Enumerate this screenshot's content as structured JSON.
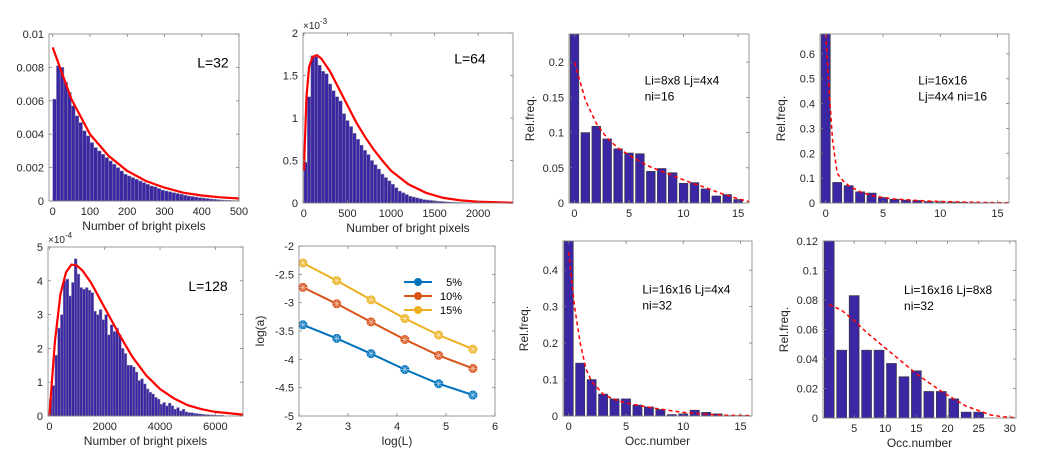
{
  "colors": {
    "bar_fill": "#3b27a3",
    "bar_edge": "#1a1050",
    "fit_line": "#ff0000",
    "series_5": "#0072bd",
    "series_10": "#d95319",
    "series_15": "#edb120",
    "axis": "#808080"
  },
  "chart_data": [
    {
      "id": "hist-L32",
      "type": "bar",
      "title": "",
      "annotation": "L=32",
      "xlabel": "Number of bright pixels",
      "ylabel": "",
      "xlim": [
        -10,
        500
      ],
      "ylim": [
        0,
        0.01
      ],
      "xticks": [
        0,
        100,
        200,
        300,
        400,
        500
      ],
      "xtick_labels": [
        "0",
        "100",
        "200",
        "300",
        "400",
        "500"
      ],
      "yticks": [
        0,
        0.002,
        0.004,
        0.006,
        0.008,
        0.01
      ],
      "ytick_labels": [
        "0",
        "0.002",
        "0.004",
        "0.006",
        "0.008",
        "0.01"
      ],
      "exponent_label": "",
      "bin_start": 0,
      "bin_width": 10,
      "values": [
        0.0061,
        0.0081,
        0.008,
        0.0071,
        0.0065,
        0.0057,
        0.0051,
        0.0047,
        0.0042,
        0.0039,
        0.0035,
        0.0032,
        0.003,
        0.0028,
        0.0026,
        0.0024,
        0.0022,
        0.002,
        0.0018,
        0.0016,
        0.0015,
        0.0014,
        0.0013,
        0.0012,
        0.0011,
        0.001,
        0.0009,
        0.00085,
        0.00075,
        0.00065,
        0.0006,
        0.00055,
        0.0005,
        0.00045,
        0.0004,
        0.00035,
        0.0003,
        0.00027,
        0.00024,
        0.0002,
        0.00018,
        0.00015,
        0.00012,
        0.0001,
        8e-05,
        6e-05,
        5e-05,
        4e-05,
        3e-05,
        2e-05
      ],
      "fit": {
        "kind": "exponential",
        "x": [
          0,
          50,
          100,
          150,
          200,
          250,
          300,
          350,
          400,
          450,
          500
        ],
        "y": [
          0.0092,
          0.0061,
          0.004,
          0.0027,
          0.0018,
          0.0012,
          0.0008,
          0.0005,
          0.00033,
          0.00022,
          0.00015
        ]
      }
    },
    {
      "id": "hist-L64",
      "type": "bar",
      "title": "",
      "annotation": "L=64",
      "xlabel": "Number of bright pixels",
      "ylabel": "",
      "xlim": [
        -10,
        2400
      ],
      "ylim": [
        0,
        2
      ],
      "xticks": [
        0,
        500,
        1000,
        1500,
        2000
      ],
      "xtick_labels": [
        "0",
        "500",
        "1000",
        "1500",
        "2000"
      ],
      "yticks": [
        0,
        0.5,
        1,
        1.5,
        2
      ],
      "ytick_labels": [
        "0",
        "0.5",
        "1",
        "1.5",
        "2"
      ],
      "exponent_label": "×10^-3",
      "bin_start": 0,
      "bin_width": 40,
      "values": [
        0.48,
        1.25,
        1.73,
        1.72,
        1.62,
        1.55,
        1.52,
        1.4,
        1.32,
        1.25,
        1.2,
        1.05,
        0.97,
        0.9,
        0.82,
        0.75,
        0.68,
        0.62,
        0.57,
        0.5,
        0.45,
        0.4,
        0.34,
        0.3,
        0.26,
        0.22,
        0.18,
        0.14,
        0.12,
        0.1,
        0.08,
        0.07,
        0.06,
        0.05,
        0.04,
        0.035,
        0.03,
        0.025,
        0.02,
        0.018,
        0.015,
        0.012,
        0.01,
        0.008,
        0.006,
        0.005,
        0.004,
        0.003
      ],
      "fit": {
        "kind": "gamma",
        "x": [
          0,
          30,
          60,
          100,
          150,
          200,
          300,
          400,
          500,
          600,
          700,
          800,
          900,
          1000,
          1200,
          1400,
          1600,
          1800,
          2000,
          2400
        ],
        "y": [
          0.38,
          1.25,
          1.6,
          1.72,
          1.74,
          1.7,
          1.55,
          1.35,
          1.15,
          0.95,
          0.78,
          0.63,
          0.5,
          0.38,
          0.22,
          0.12,
          0.06,
          0.03,
          0.015,
          0.003
        ]
      }
    },
    {
      "id": "occ-8x8-4x4-16",
      "type": "bar",
      "title": "",
      "annotation": [
        "Li=8x8 Lj=4x4",
        "ni=16"
      ],
      "xlabel": "",
      "ylabel": "Rel.freq.",
      "xlim": [
        -0.5,
        16
      ],
      "ylim": [
        0,
        0.24
      ],
      "xticks": [
        0,
        5,
        10,
        15
      ],
      "xtick_labels": [
        "0",
        "5",
        "10",
        "15"
      ],
      "yticks": [
        0,
        0.05,
        0.1,
        0.15,
        0.2
      ],
      "ytick_labels": [
        "0",
        "0.05",
        "0.1",
        "0.15",
        "0.2"
      ],
      "exponent_label": "",
      "categories": [
        0,
        1,
        2,
        3,
        4,
        5,
        6,
        7,
        8,
        9,
        10,
        11,
        12,
        13,
        14,
        15
      ],
      "values": [
        0.24,
        0.1,
        0.109,
        0.091,
        0.077,
        0.071,
        0.07,
        0.045,
        0.049,
        0.043,
        0.028,
        0.029,
        0.02,
        0.01,
        0.012,
        0.005
      ],
      "fit": {
        "kind": "dashed",
        "x": [
          0,
          1,
          2,
          3,
          4,
          5,
          6,
          7,
          8,
          9,
          10,
          11,
          12,
          13,
          14,
          15,
          16
        ],
        "y": [
          0.2,
          0.146,
          0.113,
          0.092,
          0.078,
          0.068,
          0.059,
          0.051,
          0.045,
          0.039,
          0.033,
          0.027,
          0.022,
          0.016,
          0.011,
          0.006,
          0.002
        ]
      }
    },
    {
      "id": "occ-16x16-4x4-16",
      "type": "bar",
      "title": "",
      "annotation": [
        "Li=16x16",
        "Lj=4x4 ni=16"
      ],
      "xlabel": "",
      "ylabel": "Rel.freq.",
      "xlim": [
        -0.5,
        16
      ],
      "ylim": [
        0,
        0.68
      ],
      "xticks": [
        0,
        5,
        10,
        15
      ],
      "xtick_labels": [
        "0",
        "5",
        "10",
        "15"
      ],
      "yticks": [
        0,
        0.1,
        0.2,
        0.3,
        0.4,
        0.5,
        0.6
      ],
      "ytick_labels": [
        "0",
        "0.1",
        "0.2",
        "0.3",
        "0.4",
        "0.5",
        "0.6"
      ],
      "exponent_label": "",
      "categories": [
        0,
        1,
        2,
        3,
        4,
        5,
        6,
        7,
        8,
        9,
        10,
        11,
        12,
        13,
        14,
        15
      ],
      "values": [
        0.68,
        0.083,
        0.07,
        0.045,
        0.04,
        0.022,
        0.015,
        0.012,
        0.01,
        0.006,
        0.005,
        0.004,
        0.003,
        0.002,
        0.001,
        0.001
      ],
      "fit": {
        "kind": "dashed",
        "x": [
          0,
          0.3,
          0.6,
          1,
          1.5,
          2,
          3,
          4,
          5,
          6,
          8,
          10,
          12,
          14,
          16
        ],
        "y": [
          0.68,
          0.45,
          0.25,
          0.12,
          0.09,
          0.07,
          0.045,
          0.03,
          0.022,
          0.016,
          0.01,
          0.006,
          0.004,
          0.002,
          0.001
        ]
      }
    },
    {
      "id": "hist-L128",
      "type": "bar",
      "title": "",
      "annotation": "L=128",
      "xlabel": "Number of bright pixels",
      "ylabel": "",
      "xlim": [
        -50,
        7000
      ],
      "ylim": [
        0,
        5
      ],
      "xticks": [
        0,
        2000,
        4000,
        6000
      ],
      "xtick_labels": [
        "0",
        "2000",
        "4000",
        "6000"
      ],
      "yticks": [
        0,
        1,
        2,
        3,
        4,
        5
      ],
      "ytick_labels": [
        "0",
        "1",
        "2",
        "3",
        "4",
        "5"
      ],
      "exponent_label": "×10^-4",
      "bin_start": 0,
      "bin_width": 100,
      "values": [
        0.5,
        0.9,
        1.8,
        2.6,
        3.0,
        4.0,
        4.05,
        3.55,
        3.95,
        4.65,
        4.2,
        3.8,
        3.75,
        3.8,
        3.72,
        3.65,
        3.1,
        3.0,
        3.15,
        2.85,
        3.0,
        2.4,
        2.7,
        2.5,
        2.6,
        2.4,
        2.0,
        1.85,
        1.5,
        1.5,
        1.45,
        1.3,
        1.05,
        1.1,
        0.95,
        0.8,
        0.7,
        0.65,
        0.55,
        0.5,
        0.35,
        0.4,
        0.3,
        0.38,
        0.3,
        0.2,
        0.25,
        0.15,
        0.2,
        0.12,
        0.1,
        0.1,
        0.08,
        0.07,
        0.06,
        0.05,
        0.04,
        0.04,
        0.03,
        0.03,
        0.02,
        0.02,
        0.02
      ],
      "fit": {
        "kind": "gamma",
        "x": [
          0,
          200,
          400,
          600,
          800,
          1000,
          1200,
          1500,
          2000,
          2500,
          3000,
          3500,
          4000,
          4500,
          5000,
          5500,
          6000,
          7000
        ],
        "y": [
          0,
          2.2,
          3.6,
          4.25,
          4.48,
          4.45,
          4.3,
          3.95,
          3.2,
          2.45,
          1.75,
          1.2,
          0.8,
          0.52,
          0.32,
          0.2,
          0.12,
          0.04
        ]
      }
    },
    {
      "id": "log-a-vs-log-L",
      "type": "line",
      "title": "",
      "xlabel": "log(L)",
      "ylabel": "log(a)",
      "xlim": [
        2,
        6
      ],
      "ylim": [
        -5,
        -2
      ],
      "xticks": [
        2,
        3,
        4,
        5,
        6
      ],
      "xtick_labels": [
        "2",
        "3",
        "4",
        "5",
        "6"
      ],
      "yticks": [
        -5,
        -4.5,
        -4,
        -3.5,
        -3,
        -2.5,
        -2
      ],
      "ytick_labels": [
        "-5",
        "-4.5",
        "-4",
        "-3.5",
        "-3",
        "-2.5",
        "-2"
      ],
      "legend_position": "top-right",
      "x": [
        2.08,
        2.77,
        3.47,
        4.16,
        4.85,
        5.55
      ],
      "series": [
        {
          "name": "5%",
          "color_key": "series_5",
          "values": [
            -3.39,
            -3.63,
            -3.9,
            -4.18,
            -4.43,
            -4.63
          ]
        },
        {
          "name": "10%",
          "color_key": "series_10",
          "values": [
            -2.73,
            -3.02,
            -3.34,
            -3.65,
            -3.93,
            -4.16
          ]
        },
        {
          "name": "15%",
          "color_key": "series_15",
          "values": [
            -2.3,
            -2.61,
            -2.95,
            -3.28,
            -3.57,
            -3.82
          ]
        }
      ]
    },
    {
      "id": "occ-16x16-4x4-32",
      "type": "bar",
      "title": "",
      "annotation": [
        "Li=16x16 Lj=4x4",
        "ni=32"
      ],
      "xlabel": "Occ.number",
      "ylabel": "Rel.freq.",
      "xlim": [
        -0.5,
        16
      ],
      "ylim": [
        0,
        0.48
      ],
      "xticks": [
        0,
        5,
        10,
        15
      ],
      "xtick_labels": [
        "0",
        "5",
        "10",
        "15"
      ],
      "yticks": [
        0,
        0.1,
        0.2,
        0.3,
        0.4
      ],
      "ytick_labels": [
        "0",
        "0.1",
        "0.2",
        "0.3",
        "0.4"
      ],
      "exponent_label": "",
      "categories": [
        0,
        1,
        2,
        3,
        4,
        5,
        6,
        7,
        8,
        9,
        10,
        11,
        12,
        13,
        14,
        15
      ],
      "values": [
        0.48,
        0.145,
        0.1,
        0.06,
        0.047,
        0.047,
        0.03,
        0.025,
        0.018,
        0.004,
        0.006,
        0.016,
        0.01,
        0.006,
        0.001,
        0.001
      ],
      "fit": {
        "kind": "dashed",
        "x": [
          0,
          0.5,
          1,
          1.5,
          2,
          3,
          4,
          5,
          6,
          7,
          8,
          10,
          12,
          14,
          16
        ],
        "y": [
          0.45,
          0.3,
          0.2,
          0.13,
          0.095,
          0.06,
          0.045,
          0.036,
          0.03,
          0.024,
          0.019,
          0.01,
          0.005,
          0.002,
          0.001
        ]
      }
    },
    {
      "id": "occ-16x16-8x8-32",
      "type": "bar",
      "title": "",
      "annotation": [
        "Li=16x16 Lj=8x8",
        "ni=32"
      ],
      "xlabel": "Occ.number",
      "ylabel": "Rel.freq.",
      "xlim": [
        0,
        31
      ],
      "ylim": [
        0,
        0.12
      ],
      "xticks": [
        5,
        10,
        15,
        20,
        25,
        30
      ],
      "xtick_labels": [
        "5",
        "10",
        "15",
        "20",
        "25",
        "30"
      ],
      "yticks": [
        0,
        0.02,
        0.04,
        0.06,
        0.08,
        0.1,
        0.12
      ],
      "ytick_labels": [
        "0",
        "0.02",
        "0.04",
        "0.06",
        "0.08",
        "0.1",
        "0.12"
      ],
      "exponent_label": "",
      "categories": [
        1,
        3,
        5,
        7,
        9,
        11,
        13,
        15,
        17,
        19,
        21,
        23,
        25,
        27,
        29
      ],
      "values": [
        0.12,
        0.046,
        0.083,
        0.046,
        0.046,
        0.037,
        0.028,
        0.032,
        0.018,
        0.018,
        0.013,
        0.004,
        0.004,
        0,
        0
      ],
      "fit": {
        "kind": "dashed",
        "x": [
          1,
          3,
          5,
          7,
          9,
          11,
          13,
          15,
          17,
          19,
          21,
          23,
          25,
          27,
          29,
          31
        ],
        "y": [
          0.077,
          0.073,
          0.066,
          0.058,
          0.051,
          0.044,
          0.037,
          0.03,
          0.024,
          0.018,
          0.013,
          0.008,
          0.005,
          0.002,
          0.0008,
          0.0002
        ]
      }
    }
  ]
}
